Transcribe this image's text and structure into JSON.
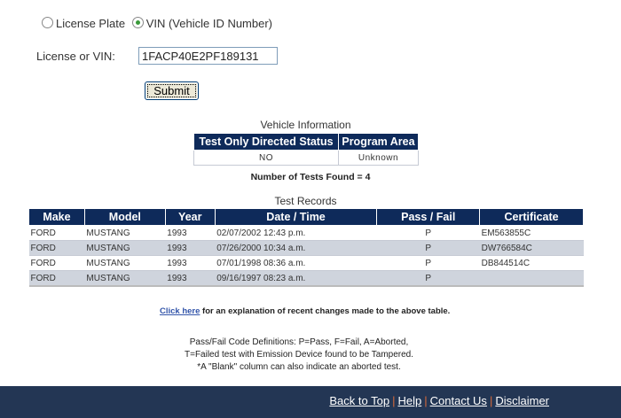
{
  "search": {
    "option_plate": "License Plate",
    "option_vin": "VIN (Vehicle ID Number)",
    "selected": "vin",
    "field_label": "License or VIN:",
    "field_value": "1FACP40E2PF189131",
    "submit_label": "Submit"
  },
  "vehicle_info": {
    "title": "Vehicle Information",
    "headers": [
      "Test Only Directed Status",
      "Program Area"
    ],
    "values": [
      "NO",
      "Unknown"
    ]
  },
  "tests_found": "Number of Tests Found = 4",
  "test_records": {
    "title": "Test Records",
    "headers": [
      "Make",
      "Model",
      "Year",
      "Date / Time",
      "Pass / Fail",
      "Certificate"
    ],
    "rows": [
      [
        "FORD",
        "MUSTANG",
        "1993",
        "02/07/2002 12:43 p.m.",
        "P",
        "EM563855C"
      ],
      [
        "FORD",
        "MUSTANG",
        "1993",
        "07/26/2000 10:34 a.m.",
        "P",
        "DW766584C"
      ],
      [
        "FORD",
        "MUSTANG",
        "1993",
        "07/01/1998 08:36 a.m.",
        "P",
        "DB844514C"
      ],
      [
        "FORD",
        "MUSTANG",
        "1993",
        "09/16/1997 08:23 a.m.",
        "P",
        ""
      ]
    ]
  },
  "note": {
    "link": "Click here",
    "text": " for an explanation of recent changes made to the above table."
  },
  "definitions": [
    "Pass/Fail Code Definitions: P=Pass, F=Fail, A=Aborted,",
    "T=Failed test with Emission Device found to be Tampered.",
    "*A \"Blank\" column can also indicate an aborted test."
  ],
  "footer": {
    "links": [
      "Back to Top",
      "Help",
      "Contact Us",
      "Disclaimer"
    ],
    "separator": "|"
  },
  "colors": {
    "header_bg": "#0e2a5a",
    "footer_bg": "#233654",
    "alt_row": "#cfd4dd"
  }
}
